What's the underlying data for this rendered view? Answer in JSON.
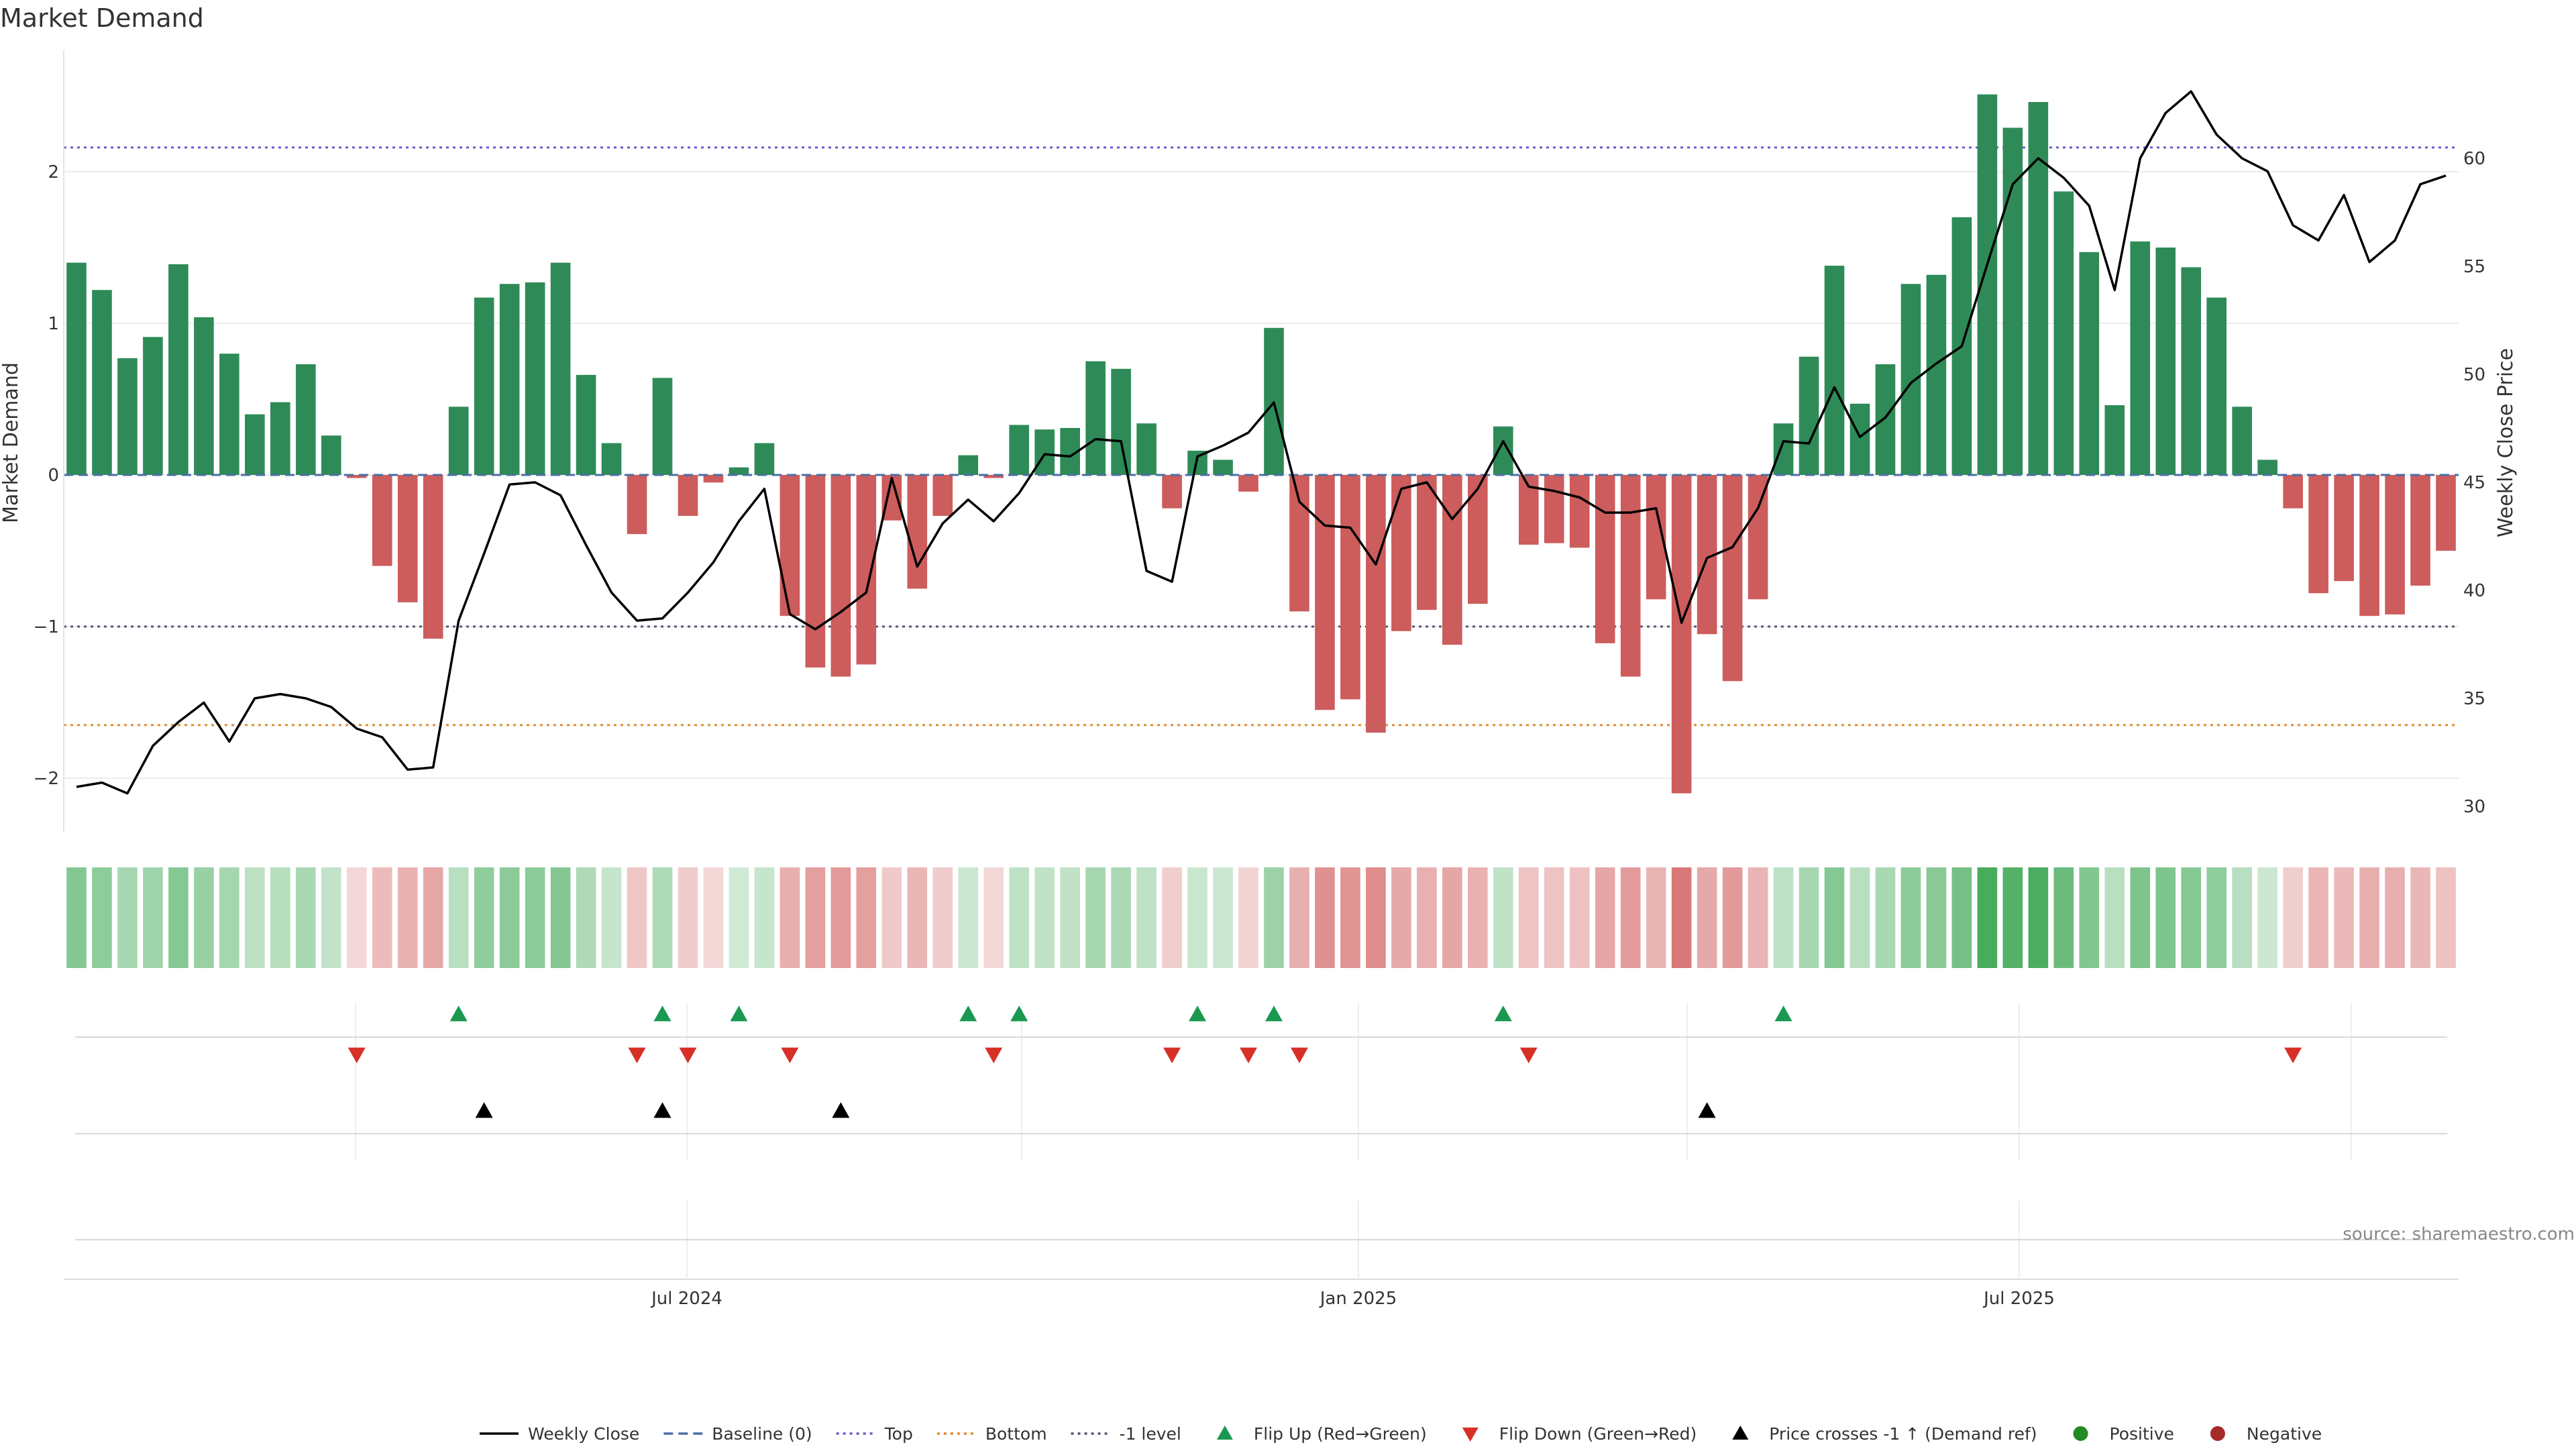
{
  "chart_data": {
    "type": "bar",
    "title": "Market Demand",
    "ylabel": "Market Demand",
    "y2label": "Weekly Close Price",
    "source": "source: sharemaestro.com",
    "ylim": [
      -2.35,
      2.75
    ],
    "y2lim": [
      29,
      66
    ],
    "yticks": [
      "−2",
      "−1",
      "0",
      "1",
      "2"
    ],
    "y2ticks": [
      "30",
      "35",
      "40",
      "45",
      "50",
      "55",
      "60"
    ],
    "xticks": [
      "Jul 2024",
      "Jan 2025",
      "Jul 2025"
    ],
    "top_level": 2.16,
    "bottom_level": -1.65,
    "minus_one_level": -1,
    "grid": true,
    "legend_position": "bottom",
    "colors": {
      "positive": "#2e8b57",
      "negative": "#cd5c5c",
      "price": "#000000",
      "flip_up": "#1a9850",
      "flip_down": "#d73027",
      "top": "#6a5acd",
      "bottom": "#e08a2c",
      "minus_one": "#555577",
      "baseline": "#4a6fa5"
    },
    "demand": [
      1.4,
      1.22,
      0.77,
      0.91,
      1.39,
      1.04,
      0.8,
      0.4,
      0.48,
      0.73,
      0.26,
      -0.02,
      -0.6,
      -0.84,
      -1.08,
      0.45,
      1.17,
      1.26,
      1.27,
      1.4,
      0.66,
      0.21,
      -0.39,
      0.64,
      -0.27,
      -0.05,
      0.05,
      0.21,
      -0.93,
      -1.27,
      -1.33,
      -1.25,
      -0.3,
      -0.75,
      -0.27,
      0.13,
      -0.02,
      0.33,
      0.3,
      0.31,
      0.75,
      0.7,
      0.34,
      -0.22,
      0.16,
      0.1,
      -0.11,
      0.97,
      -0.9,
      -1.55,
      -1.48,
      -1.7,
      -1.03,
      -0.89,
      -1.12,
      -0.85,
      0.32,
      -0.46,
      -0.45,
      -0.48,
      -1.11,
      -1.33,
      -0.82,
      -2.1,
      -1.05,
      -1.36,
      -0.82,
      0.34,
      0.78,
      1.38,
      0.47,
      0.73,
      1.26,
      1.32,
      1.7,
      2.51,
      2.29,
      2.46,
      1.87,
      1.47,
      0.46,
      1.54,
      1.5,
      1.37,
      1.17,
      0.45,
      0.1,
      -0.22,
      -0.78,
      -0.7,
      -0.93,
      -0.92,
      -0.73,
      -0.5
    ],
    "price": [
      30.9,
      31.1,
      30.6,
      32.8,
      33.9,
      34.8,
      33.0,
      35.0,
      35.2,
      35.0,
      34.6,
      33.6,
      33.2,
      31.7,
      31.8,
      38.6,
      41.7,
      44.9,
      45.0,
      44.4,
      42.1,
      39.9,
      38.6,
      38.7,
      39.9,
      41.3,
      43.2,
      44.7,
      38.9,
      38.2,
      39.0,
      39.9,
      45.2,
      41.1,
      43.1,
      44.2,
      43.2,
      44.5,
      46.3,
      46.2,
      47.0,
      46.9,
      40.9,
      40.4,
      46.2,
      46.7,
      47.3,
      48.7,
      44.1,
      43.0,
      42.9,
      41.2,
      44.7,
      45.0,
      43.3,
      44.7,
      46.9,
      44.8,
      44.6,
      44.3,
      43.6,
      43.6,
      43.8,
      38.5,
      41.5,
      42.0,
      43.8,
      46.9,
      46.8,
      49.4,
      47.1,
      48.0,
      49.6,
      50.5,
      51.3,
      55.1,
      58.8,
      60.0,
      59.1,
      57.8,
      53.9,
      60.0,
      62.1,
      63.1,
      61.1,
      60.0,
      59.4,
      56.9,
      56.2,
      58.3,
      55.2,
      56.2,
      58.8,
      59.2
    ],
    "flip_up": [
      15,
      23,
      26,
      35,
      37,
      44,
      47,
      56,
      67
    ],
    "flip_down": [
      11,
      22,
      24,
      28,
      36,
      43,
      46,
      48,
      57,
      87
    ],
    "price_cross_up": [
      16,
      23,
      30,
      64
    ],
    "legend": [
      {
        "label": "Weekly Close",
        "icon": "solid-line",
        "color": "#000000"
      },
      {
        "label": "Baseline (0)",
        "icon": "dashed-line",
        "color": "#4a6fa5"
      },
      {
        "label": "Top",
        "icon": "dotted-line",
        "color": "#6a5acd"
      },
      {
        "label": "Bottom",
        "icon": "dotted-line",
        "color": "#e08a2c"
      },
      {
        "label": "-1 level",
        "icon": "dotted-line",
        "color": "#555577"
      },
      {
        "label": "Flip Up (Red→Green)",
        "icon": "triangle-up",
        "color": "#1a9850"
      },
      {
        "label": "Flip Down (Green→Red)",
        "icon": "triangle-down",
        "color": "#d73027"
      },
      {
        "label": "Price crosses -1 ↑ (Demand ref)",
        "icon": "triangle-up",
        "color": "#000000"
      },
      {
        "label": "Positive",
        "icon": "circle",
        "color": "#228b22"
      },
      {
        "label": "Negative",
        "icon": "circle",
        "color": "#a52a2a"
      }
    ]
  }
}
